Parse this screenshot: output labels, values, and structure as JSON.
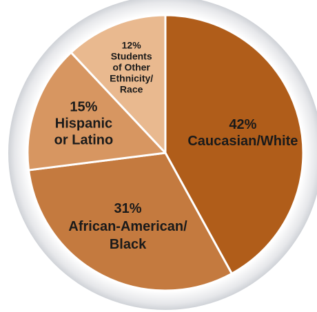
{
  "chart_data": {
    "type": "pie",
    "title": "",
    "slices": [
      {
        "percent_label": "42%",
        "value": 42,
        "label_lines": [
          "Caucasian/White"
        ],
        "color": "#b05d1a"
      },
      {
        "percent_label": "31%",
        "value": 31,
        "label_lines": [
          "African-American/",
          "Black"
        ],
        "color": "#c47a3f"
      },
      {
        "percent_label": "15%",
        "value": 15,
        "label_lines": [
          "Hispanic",
          "or Latino"
        ],
        "color": "#d79661"
      },
      {
        "percent_label": "12%",
        "value": 12,
        "label_lines": [
          "Students",
          "of Other",
          "Ethnicity/",
          "Race"
        ],
        "color": "#e9b98f"
      }
    ]
  }
}
